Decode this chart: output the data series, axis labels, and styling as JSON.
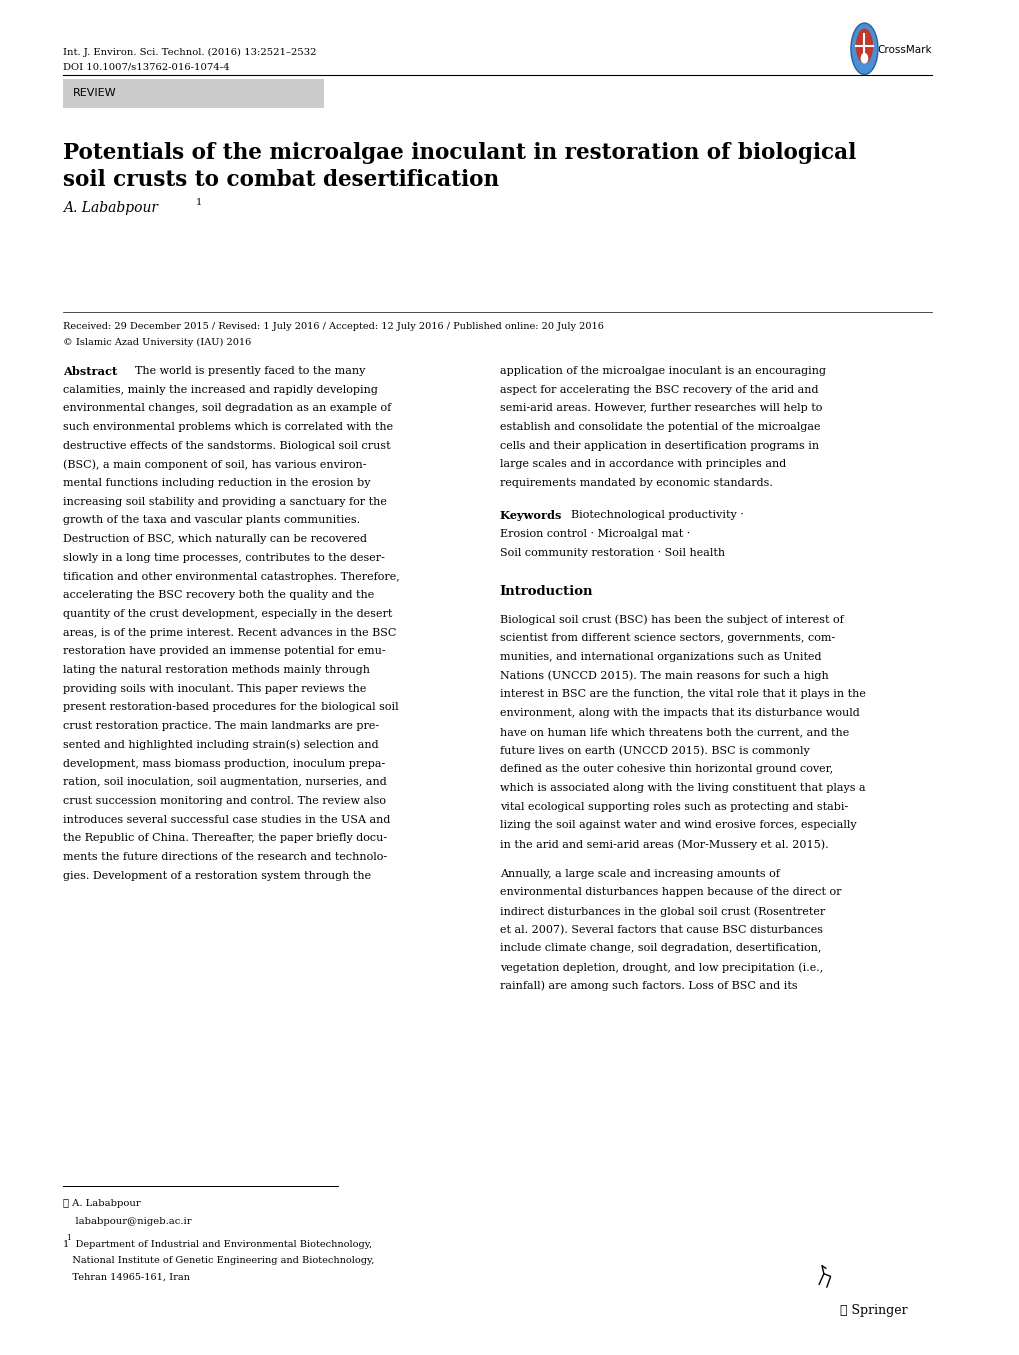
{
  "bg_color": "#ffffff",
  "page_width": 10.2,
  "page_height": 13.55,
  "journal_line1": "Int. J. Environ. Sci. Technol. (2016) 13:2521–2532",
  "journal_line2": "DOI 10.1007/s13762-016-1074-4",
  "review_label": "REVIEW",
  "title_line1": "Potentials of the microalgae inoculant in restoration of biological",
  "title_line2": "soil crusts to combat desertification",
  "author": "A. Lababpour",
  "author_superscript": "1",
  "received_line": "Received: 29 December 2015 / Revised: 1 July 2016 / Accepted: 12 July 2016 / Published online: 20 July 2016",
  "copyright_line": "© Islamic Azad University (IAU) 2016",
  "abstract_title": "Abstract",
  "abstract_left": "The world is presently faced to the many\ncalamities, mainly the increased and rapidly developing\nenvironmental changes, soil degradation as an example of\nsuch environmental problems which is correlated with the\ndestructive effects of the sandstorms. Biological soil crust\n(BSC), a main component of soil, has various environ-\nmental functions including reduction in the erosion by\nincreasing soil stability and providing a sanctuary for the\ngrowth of the taxa and vascular plants communities.\nDestruction of BSC, which naturally can be recovered\nslowly in a long time processes, contributes to the deser-\ntification and other environmental catastrophes. Therefore,\naccelerating the BSC recovery both the quality and the\nquantity of the crust development, especially in the desert\nareas, is of the prime interest. Recent advances in the BSC\nrestoration have provided an immense potential for emu-\nlating the natural restoration methods mainly through\nproviding soils with inoculant. This paper reviews the\npresent restoration-based procedures for the biological soil\ncrust restoration practice. The main landmarks are pre-\nsented and highlighted including strain(s) selection and\ndevelopment, mass biomass production, inoculum prepa-\nration, soil inoculation, soil augmentation, nurseries, and\ncrust succession monitoring and control. The review also\nintroduces several successful case studies in the USA and\nthe Republic of China. Thereafter, the paper briefly docu-\nments the future directions of the research and technolo-\ngies. Development of a restoration system through the",
  "abstract_right": "application of the microalgae inoculant is an encouraging\naspect for accelerating the BSC recovery of the arid and\nsemi-arid areas. However, further researches will help to\nestablish and consolidate the potential of the microalgae\ncells and their application in desertification programs in\nlarge scales and in accordance with principles and\nrequirements mandated by economic standards.",
  "keywords_title": "Keywords",
  "keywords_text": "Biotechnological productivity ·\nErosion control · Microalgal mat ·\nSoil community restoration · Soil health",
  "intro_title": "Introduction",
  "intro_text": "Biological soil crust (BSC) has been the subject of interest of\nscientist from different science sectors, governments, com-\nmunities, and international organizations such as United\nNations (UNCCD 2015). The main reasons for such a high\ninterest in BSC are the function, the vital role that it plays in the\nenvironment, along with the impacts that its disturbance would\nhave on human life which threatens both the current, and the\nfuture lives on earth (UNCCD 2015). BSC is commonly\ndefined as the outer cohesive thin horizontal ground cover,\nwhich is associated along with the living constituent that plays a\nvital ecological supporting roles such as protecting and stabi-\nlizing the soil against water and wind erosive forces, especially\nin the arid and semi-arid areas (Mor-Mussery et al. 2015).",
  "intro_text2": "Annually, a large scale and increasing amounts of\nenvironmental disturbances happen because of the direct or\nindirect disturbances in the global soil crust (Rosentreter\net al. 2007). Several factors that cause BSC disturbances\ninclude climate change, soil degradation, desertification,\nvegetation depletion, drought, and low precipitation (i.e.,\nrainfall) are among such factors. Loss of BSC and its",
  "footnote_email": "✉ A. Lababpour",
  "footnote_email2": "    lababpour@nigeb.ac.ir",
  "footnote1": "1  Department of Industrial and Environmental Biotechnology,",
  "footnote2": "   National Institute of Genetic Engineering and Biotechnology,",
  "footnote3": "   Tehran 14965-161, Iran",
  "springer_text": "ℓ Springer"
}
